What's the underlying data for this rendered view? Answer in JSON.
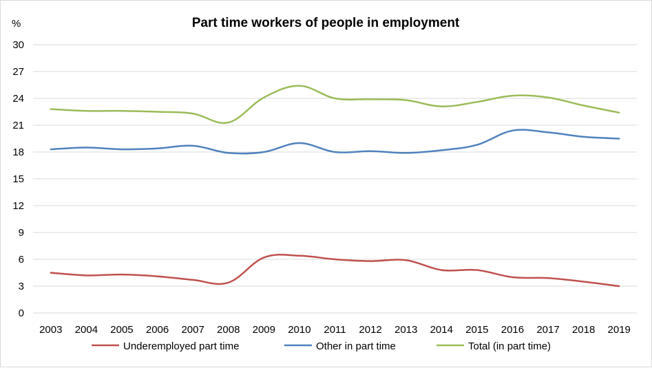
{
  "chart_data": {
    "type": "line",
    "title": "Part time workers of people in employment",
    "ylabel": "%",
    "xlabel": "",
    "ylim": [
      0,
      30
    ],
    "yticks": [
      0,
      3,
      6,
      9,
      12,
      15,
      18,
      21,
      24,
      27,
      30
    ],
    "grid": true,
    "legend_position": "bottom",
    "categories": [
      "2003",
      "2004",
      "2005",
      "2006",
      "2007",
      "2008",
      "2009",
      "2010",
      "2011",
      "2012",
      "2013",
      "2014",
      "2015",
      "2016",
      "2017",
      "2018",
      "2019"
    ],
    "series": [
      {
        "name": "Underemployed part time",
        "color": "#c0504d",
        "values": [
          4.5,
          4.2,
          4.3,
          4.1,
          3.7,
          3.4,
          6.2,
          6.4,
          6.0,
          5.8,
          5.9,
          4.8,
          4.8,
          4.0,
          3.9,
          3.5,
          3.0
        ]
      },
      {
        "name": "Other in part time",
        "color": "#4f81bd",
        "values": [
          18.3,
          18.5,
          18.3,
          18.4,
          18.7,
          17.9,
          18.0,
          19.0,
          18.0,
          18.1,
          17.9,
          18.2,
          18.8,
          20.4,
          20.2,
          19.7,
          19.5
        ]
      },
      {
        "name": "Total (in part time)",
        "color": "#9bbb59",
        "values": [
          22.8,
          22.6,
          22.6,
          22.5,
          22.3,
          21.3,
          24.1,
          25.4,
          24.0,
          23.9,
          23.8,
          23.1,
          23.6,
          24.3,
          24.1,
          23.2,
          22.4
        ]
      }
    ]
  }
}
